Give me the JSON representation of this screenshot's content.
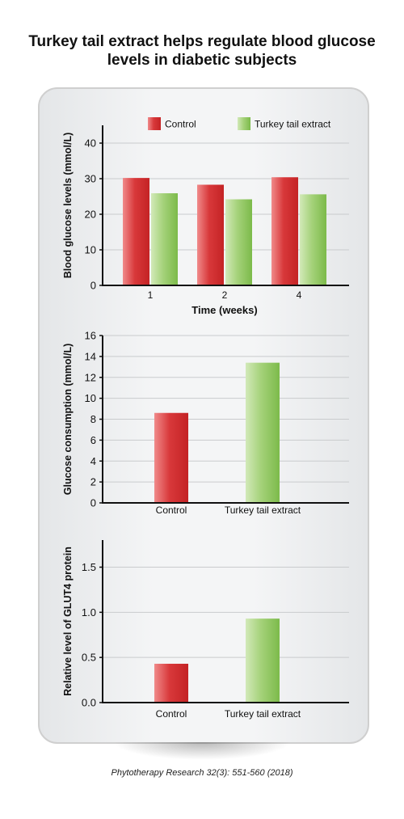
{
  "title": "Turkey tail extract helps regulate blood glucose levels in diabetic subjects",
  "citation": "Phytotherapy Research 32(3): 551-560 (2018)",
  "colors": {
    "control": "#d8383a",
    "extract": "#8dc45d",
    "axis": "#111111",
    "grid": "#c9cbcd"
  },
  "chart_data": [
    {
      "type": "bar",
      "categories": [
        "1",
        "2",
        "4"
      ],
      "series": [
        {
          "name": "Control",
          "values": [
            30.2,
            28.3,
            30.4
          ]
        },
        {
          "name": "Turkey tail extract",
          "values": [
            25.9,
            24.2,
            25.6
          ]
        }
      ],
      "title": "",
      "xlabel": "Time (weeks)",
      "ylabel": "Blood glucose levels (mmol/L)",
      "ylim": [
        0,
        45
      ],
      "yticks": [
        "0",
        "10",
        "20",
        "30",
        "40"
      ],
      "grid": true,
      "legend": "top"
    },
    {
      "type": "bar",
      "categories": [
        "Control",
        "Turkey tail extract"
      ],
      "values": [
        8.6,
        13.4
      ],
      "title": "",
      "xlabel": "",
      "ylabel": "Glucose consumption (mmol/L)",
      "ylim": [
        0,
        16
      ],
      "yticks": [
        "0",
        "2",
        "4",
        "6",
        "8",
        "10",
        "12",
        "14",
        "16"
      ],
      "grid": true
    },
    {
      "type": "bar",
      "categories": [
        "Control",
        "Turkey tail extract"
      ],
      "values": [
        0.43,
        0.93
      ],
      "title": "",
      "xlabel": "",
      "ylabel": "Relative level of GLUT4 protein",
      "ylim": [
        0,
        1.8
      ],
      "yticks": [
        "0.0",
        "0.5",
        "1.0",
        "1.5"
      ],
      "grid": true
    }
  ]
}
